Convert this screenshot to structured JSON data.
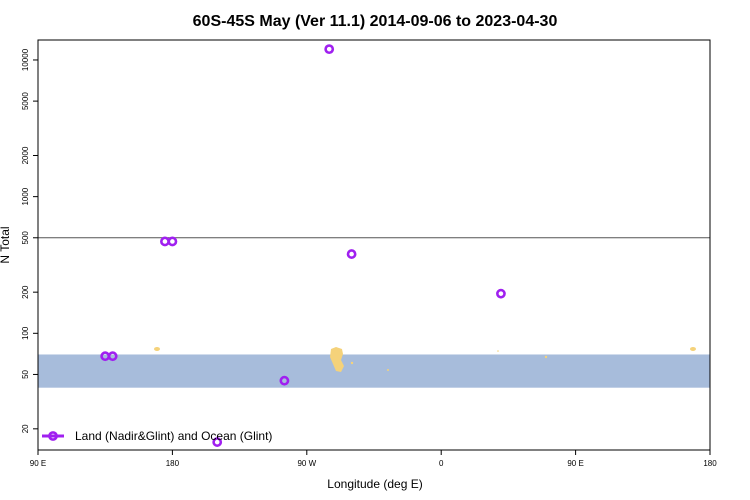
{
  "chart_data": {
    "type": "scatter",
    "title": "60S-45S May (Ver 11.1)   2014-09-06 to 2023-04-30",
    "xlabel": "Longitude (deg E)",
    "ylabel": "N Total",
    "y_scale": "log",
    "ylim": [
      14,
      14000
    ],
    "x_ticks": [
      "90 E",
      "180",
      "90 W",
      "0",
      "90 E",
      "180"
    ],
    "y_ticks": [
      10000,
      5000,
      2000,
      1000,
      500,
      200,
      100,
      50,
      20
    ],
    "reference_line": 500,
    "shaded_band": [
      40,
      70
    ],
    "series": [
      {
        "name": "Land (Nadir&Glint) and Ocean (Glint)",
        "color": "#a020f0",
        "points": [
          {
            "lon": 135,
            "y": 68
          },
          {
            "lon": 175,
            "y": 470
          },
          {
            "lon": -150,
            "y": 16
          },
          {
            "lon": -105,
            "y": 45
          },
          {
            "lon": -75,
            "y": 12000
          },
          {
            "lon": -60,
            "y": 380
          },
          {
            "lon": 40,
            "y": 195
          },
          {
            "lon": 140,
            "y": 68
          },
          {
            "lon": 180,
            "y": 470
          }
        ]
      }
    ],
    "legend_position": "bottom-left",
    "band_color": "#a7bcdb",
    "land_color": "#f5d27a"
  }
}
